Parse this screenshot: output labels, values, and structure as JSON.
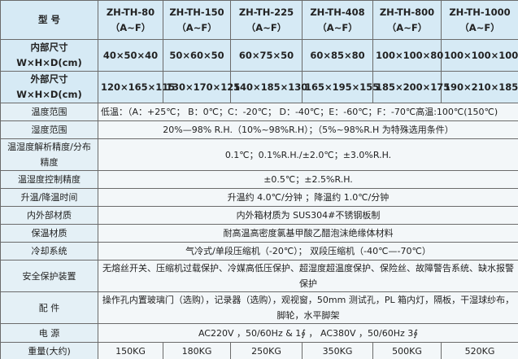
{
  "header": {
    "label": "型 号",
    "models": [
      [
        "ZH-TH-80",
        "（A~F）"
      ],
      [
        "ZH-TH-150",
        "（A~F）"
      ],
      [
        "ZH-TH-225",
        "（A~F）"
      ],
      [
        "ZH-TH-408",
        "（A~F）"
      ],
      [
        "ZH-TH-800",
        "（A~F）"
      ],
      [
        "ZH-TH-1000",
        "（A~F）"
      ]
    ]
  },
  "inner": {
    "label1": "内部尺寸",
    "label2": "W×H×D(cm)",
    "values": [
      "40×50×40",
      "50×60×50",
      "60×75×50",
      "60×85×80",
      "100×100×80",
      "100×100×100"
    ]
  },
  "outer": {
    "label1": "外部尺寸",
    "label2": "W×H×D(cm)",
    "values": [
      "120×165×115",
      "130×170×125",
      "140×185×130",
      "165×195×155",
      "185×200×175",
      "190×210×185"
    ]
  },
  "rows": [
    {
      "label": "温度范围",
      "value": "低温：（A：+25℃； B：0℃；C：-20℃； D：-40℃；E：-60℃；F：-70℃高温:100℃(150℃)"
    },
    {
      "label": "湿度范围",
      "value": "20%—98% R.H.（10%~98%R.H）；（5%~98%R.H 为特殊选用条件）"
    },
    {
      "label": "温湿度解析精度/分布精度",
      "value": "0.1℃；0.1%R.H./±2.0℃；±3.0%R.H."
    },
    {
      "label": "温湿度控制精度",
      "value": "±0.5℃；±2.5%R.H."
    },
    {
      "label": "升温/降温时间",
      "value": "升温约 4.0℃/分钟 ；降温约 1.0℃/分钟"
    },
    {
      "label": "内外部材质",
      "value": "内外箱材质为 SUS304#不锈钢板制"
    },
    {
      "label": "保温材质",
      "value": "耐高温高密度氯基甲酸乙醋泡沫绝缘体材料"
    },
    {
      "label": "冷却系统",
      "value": "气冷式/单段压缩机（-20℃）； 双段压缩机（-40℃—-70℃）"
    },
    {
      "label": "安全保护装置",
      "value": "无熔丝开关、压缩机过载保护、冷媒高低压保护、超湿度超温度保护、保险丝、故障警告系统、缺水报警保护"
    },
    {
      "label": "配 件",
      "value": "操作孔内置玻璃门（选购），记录器（选购），观视窗，50mm 测试孔，PL 箱内灯，隔板，干湿球纱布，脚轮，水平脚架"
    },
    {
      "label": "电 源",
      "value": "AC220V ，50/60Hz & 1∮ ， AC380V ，50/60Hz 3∮"
    }
  ],
  "weight": {
    "label": "重量(大约)",
    "values": [
      "150KG",
      "180KG",
      "250KG",
      "350KG",
      "500KG",
      "520KG"
    ]
  }
}
